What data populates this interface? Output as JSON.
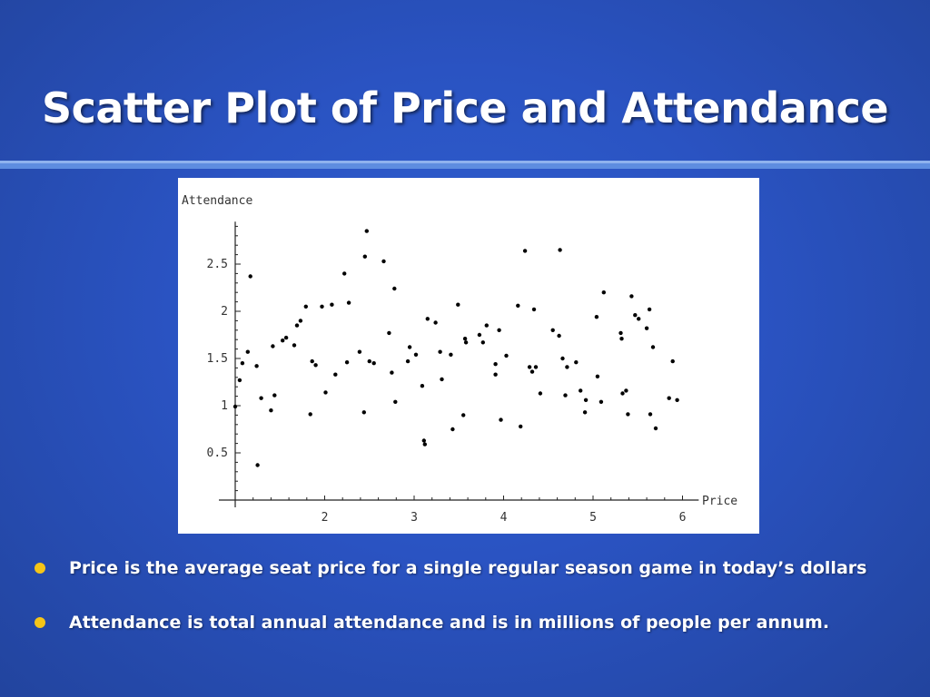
{
  "slide": {
    "title": "Scatter Plot of Price and Attendance",
    "accent_color": "#f5c518",
    "bullets": [
      {
        "text": "Price is the average seat price for a single regular season game in today’s dollars",
        "icon": "bullet-dot-icon"
      },
      {
        "text": "Attendance is total annual attendance and is in millions of people per annum.",
        "icon": "bullet-dot-icon"
      }
    ]
  },
  "chart_data": {
    "type": "scatter",
    "ylabel": "Attendance",
    "xlabel": "Price",
    "xlim": [
      1,
      6.1
    ],
    "ylim": [
      0,
      2.95
    ],
    "x_ticks": [
      "2",
      "3",
      "4",
      "5",
      "6"
    ],
    "y_ticks": [
      "0.5",
      "1",
      "1.5",
      "2",
      "2.5"
    ],
    "grid": false,
    "points": [
      [
        1.0,
        0.99
      ],
      [
        1.05,
        1.27
      ],
      [
        1.08,
        1.45
      ],
      [
        1.14,
        1.57
      ],
      [
        1.17,
        2.37
      ],
      [
        1.24,
        1.42
      ],
      [
        1.25,
        0.37
      ],
      [
        1.29,
        1.08
      ],
      [
        1.4,
        0.95
      ],
      [
        1.42,
        1.63
      ],
      [
        1.44,
        1.11
      ],
      [
        1.53,
        1.69
      ],
      [
        1.57,
        1.72
      ],
      [
        1.66,
        1.64
      ],
      [
        1.69,
        1.85
      ],
      [
        1.73,
        1.9
      ],
      [
        1.79,
        2.05
      ],
      [
        1.84,
        0.91
      ],
      [
        1.86,
        1.47
      ],
      [
        1.9,
        1.43
      ],
      [
        1.97,
        2.05
      ],
      [
        2.01,
        1.14
      ],
      [
        2.08,
        2.07
      ],
      [
        2.12,
        1.33
      ],
      [
        2.22,
        2.4
      ],
      [
        2.25,
        1.46
      ],
      [
        2.27,
        2.09
      ],
      [
        2.39,
        1.57
      ],
      [
        2.44,
        0.93
      ],
      [
        2.45,
        2.58
      ],
      [
        2.47,
        2.85
      ],
      [
        2.5,
        1.47
      ],
      [
        2.55,
        1.45
      ],
      [
        2.66,
        2.53
      ],
      [
        2.72,
        1.77
      ],
      [
        2.75,
        1.35
      ],
      [
        2.78,
        2.24
      ],
      [
        2.79,
        1.04
      ],
      [
        2.93,
        1.47
      ],
      [
        2.95,
        1.62
      ],
      [
        3.02,
        1.54
      ],
      [
        3.09,
        1.21
      ],
      [
        3.11,
        0.63
      ],
      [
        3.12,
        0.59
      ],
      [
        3.15,
        1.92
      ],
      [
        3.24,
        1.88
      ],
      [
        3.29,
        1.57
      ],
      [
        3.31,
        1.28
      ],
      [
        3.41,
        1.54
      ],
      [
        3.43,
        0.75
      ],
      [
        3.49,
        2.07
      ],
      [
        3.55,
        0.9
      ],
      [
        3.57,
        1.71
      ],
      [
        3.58,
        1.67
      ],
      [
        3.73,
        1.75
      ],
      [
        3.77,
        1.67
      ],
      [
        3.81,
        1.85
      ],
      [
        3.91,
        1.44
      ],
      [
        3.91,
        1.33
      ],
      [
        3.95,
        1.8
      ],
      [
        3.97,
        0.85
      ],
      [
        4.03,
        1.53
      ],
      [
        4.16,
        2.06
      ],
      [
        4.19,
        0.78
      ],
      [
        4.24,
        2.64
      ],
      [
        4.29,
        1.41
      ],
      [
        4.32,
        1.36
      ],
      [
        4.34,
        2.02
      ],
      [
        4.36,
        1.41
      ],
      [
        4.41,
        1.13
      ],
      [
        4.55,
        1.8
      ],
      [
        4.62,
        1.74
      ],
      [
        4.63,
        2.65
      ],
      [
        4.66,
        1.5
      ],
      [
        4.69,
        1.11
      ],
      [
        4.71,
        1.41
      ],
      [
        4.81,
        1.46
      ],
      [
        4.86,
        1.16
      ],
      [
        4.91,
        0.93
      ],
      [
        4.92,
        1.06
      ],
      [
        5.04,
        1.94
      ],
      [
        5.05,
        1.31
      ],
      [
        5.09,
        1.04
      ],
      [
        5.12,
        2.2
      ],
      [
        5.31,
        1.77
      ],
      [
        5.32,
        1.71
      ],
      [
        5.33,
        1.13
      ],
      [
        5.37,
        1.16
      ],
      [
        5.39,
        0.91
      ],
      [
        5.43,
        2.16
      ],
      [
        5.47,
        1.96
      ],
      [
        5.51,
        1.92
      ],
      [
        5.6,
        1.82
      ],
      [
        5.63,
        2.02
      ],
      [
        5.64,
        0.91
      ],
      [
        5.67,
        1.62
      ],
      [
        5.7,
        0.76
      ],
      [
        5.85,
        1.08
      ],
      [
        5.89,
        1.47
      ],
      [
        5.94,
        1.06
      ]
    ]
  }
}
